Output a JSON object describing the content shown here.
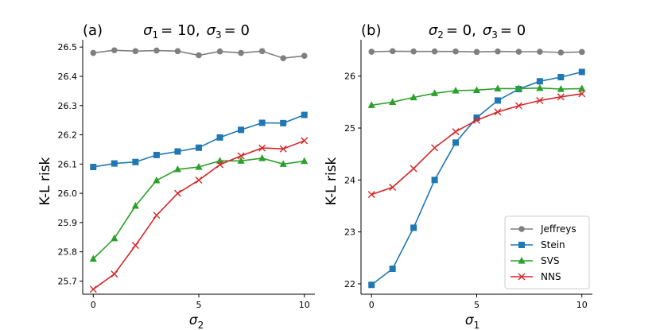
{
  "chart_data": [
    {
      "type": "line",
      "panel_label": "(a)",
      "title_parts": {
        "a_sym": "σ",
        "a_sub": "1",
        "a_eq": "= 10,",
        "b_sym": "σ",
        "b_sub": "3",
        "b_eq": "= 0"
      },
      "xlabel_sym": "σ",
      "xlabel_sub": "2",
      "ylabel": "K-L risk",
      "x": [
        0,
        1,
        2,
        3,
        4,
        5,
        6,
        7,
        8,
        9,
        10
      ],
      "xticks": [
        0,
        5,
        10
      ],
      "xlim": [
        -0.5,
        10.5
      ],
      "ylim": [
        25.655,
        26.525
      ],
      "yticks": [
        25.7,
        25.8,
        25.9,
        26.0,
        26.1,
        26.2,
        26.3,
        26.4,
        26.5
      ],
      "ytick_labels": [
        "25.7",
        "25.8",
        "25.9",
        "26.0",
        "26.1",
        "26.2",
        "26.3",
        "26.4",
        "26.5"
      ],
      "series": [
        {
          "name": "Jeffreys",
          "color": "#7f7f7f",
          "marker": "circle",
          "values": [
            26.48,
            26.489,
            26.486,
            26.488,
            26.486,
            26.472,
            26.485,
            26.48,
            26.486,
            26.462,
            26.47
          ]
        },
        {
          "name": "Stein",
          "color": "#1f77b4",
          "marker": "square",
          "values": [
            26.09,
            26.102,
            26.107,
            26.131,
            26.143,
            26.156,
            26.191,
            26.217,
            26.241,
            26.24,
            26.268
          ]
        },
        {
          "name": "SVS",
          "color": "#2ca02c",
          "marker": "triangle",
          "values": [
            25.776,
            25.846,
            25.957,
            26.044,
            26.082,
            26.09,
            26.111,
            26.111,
            26.12,
            26.1,
            26.11
          ]
        },
        {
          "name": "NNS",
          "color": "#d62728",
          "marker": "x",
          "values": [
            25.672,
            25.724,
            25.822,
            25.925,
            26.0,
            26.045,
            26.098,
            26.128,
            26.155,
            26.152,
            26.18
          ]
        }
      ]
    },
    {
      "type": "line",
      "panel_label": "(b)",
      "title_parts": {
        "a_sym": "σ",
        "a_sub": "2",
        "a_eq": "= 0,",
        "b_sym": "σ",
        "b_sub": "3",
        "b_eq": "= 0"
      },
      "xlabel_sym": "σ",
      "xlabel_sub": "1",
      "ylabel": "K-L risk",
      "x": [
        0,
        1,
        2,
        3,
        4,
        5,
        6,
        7,
        8,
        9,
        10
      ],
      "xticks": [
        0,
        5,
        10
      ],
      "xlim": [
        -0.5,
        10.5
      ],
      "ylim": [
        21.8,
        26.7
      ],
      "yticks": [
        22,
        23,
        24,
        25,
        26
      ],
      "ytick_labels": [
        "22",
        "23",
        "24",
        "25",
        "26"
      ],
      "legend_position": "bottom-right",
      "series": [
        {
          "name": "Jeffreys",
          "color": "#7f7f7f",
          "marker": "circle",
          "values": [
            26.47,
            26.48,
            26.475,
            26.475,
            26.475,
            26.465,
            26.475,
            26.47,
            26.47,
            26.455,
            26.465
          ]
        },
        {
          "name": "Stein",
          "color": "#1f77b4",
          "marker": "square",
          "values": [
            21.98,
            22.29,
            23.08,
            24.0,
            24.72,
            25.2,
            25.53,
            25.75,
            25.9,
            25.98,
            26.08
          ]
        },
        {
          "name": "SVS",
          "color": "#2ca02c",
          "marker": "triangle",
          "values": [
            25.44,
            25.5,
            25.59,
            25.67,
            25.72,
            25.73,
            25.76,
            25.76,
            25.77,
            25.75,
            25.76
          ]
        },
        {
          "name": "NNS",
          "color": "#d62728",
          "marker": "x",
          "values": [
            23.72,
            23.86,
            24.22,
            24.62,
            24.93,
            25.15,
            25.31,
            25.43,
            25.53,
            25.6,
            25.66
          ]
        }
      ]
    }
  ]
}
